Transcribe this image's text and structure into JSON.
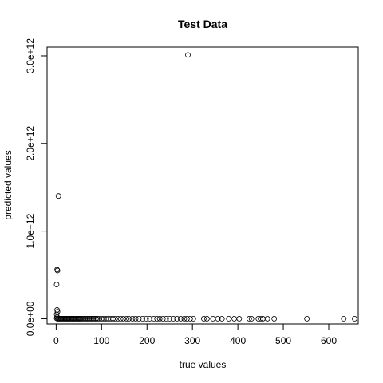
{
  "chart_data": {
    "type": "scatter",
    "title": "Test Data",
    "xlabel": "true values",
    "ylabel": "predicted values",
    "xlim": [
      -20,
      665
    ],
    "ylim": [
      -60000000000,
      3100000000000
    ],
    "xticks": [
      0,
      100,
      200,
      300,
      400,
      500,
      600
    ],
    "xtick_labels": [
      "0",
      "100",
      "200",
      "300",
      "400",
      "500",
      "600"
    ],
    "yticks": [
      0,
      1000000000000,
      2000000000000,
      3000000000000
    ],
    "ytick_labels": [
      "0.0e+00",
      "1.0e+12",
      "2.0e+12",
      "3.0e+12"
    ],
    "grid": false,
    "legend": "none",
    "points": [
      [
        290,
        3010000000000
      ],
      [
        5,
        1400000000000
      ],
      [
        2,
        560000000000
      ],
      [
        3,
        550000000000
      ],
      [
        1,
        390000000000
      ],
      [
        2,
        100000000000
      ],
      [
        3,
        80000000000
      ],
      [
        1,
        50000000000
      ],
      [
        2,
        20000000000
      ],
      [
        1,
        5000000000
      ],
      [
        3,
        0
      ],
      [
        5,
        0
      ],
      [
        7,
        0
      ],
      [
        9,
        0
      ],
      [
        11,
        0
      ],
      [
        13,
        0
      ],
      [
        15,
        0
      ],
      [
        17,
        0
      ],
      [
        19,
        0
      ],
      [
        21,
        0
      ],
      [
        23,
        0
      ],
      [
        25,
        0
      ],
      [
        27,
        0
      ],
      [
        29,
        0
      ],
      [
        31,
        0
      ],
      [
        33,
        0
      ],
      [
        35,
        0
      ],
      [
        37,
        0
      ],
      [
        39,
        0
      ],
      [
        41,
        0
      ],
      [
        43,
        0
      ],
      [
        45,
        0
      ],
      [
        47,
        0
      ],
      [
        49,
        0
      ],
      [
        51,
        0
      ],
      [
        53,
        0
      ],
      [
        55,
        0
      ],
      [
        58,
        0
      ],
      [
        61,
        0
      ],
      [
        64,
        0
      ],
      [
        67,
        0
      ],
      [
        70,
        0
      ],
      [
        73,
        0
      ],
      [
        76,
        0
      ],
      [
        79,
        0
      ],
      [
        82,
        0
      ],
      [
        85,
        0
      ],
      [
        88,
        0
      ],
      [
        91,
        0
      ],
      [
        95,
        0
      ],
      [
        100,
        0
      ],
      [
        105,
        0
      ],
      [
        110,
        0
      ],
      [
        115,
        0
      ],
      [
        120,
        0
      ],
      [
        125,
        0
      ],
      [
        130,
        0
      ],
      [
        136,
        0
      ],
      [
        142,
        0
      ],
      [
        148,
        0
      ],
      [
        155,
        0
      ],
      [
        160,
        0
      ],
      [
        168,
        0
      ],
      [
        175,
        0
      ],
      [
        182,
        0
      ],
      [
        190,
        0
      ],
      [
        198,
        0
      ],
      [
        206,
        0
      ],
      [
        215,
        0
      ],
      [
        222,
        0
      ],
      [
        228,
        0
      ],
      [
        235,
        0
      ],
      [
        242,
        0
      ],
      [
        250,
        0
      ],
      [
        258,
        0
      ],
      [
        266,
        0
      ],
      [
        274,
        0
      ],
      [
        282,
        0
      ],
      [
        288,
        0
      ],
      [
        295,
        0
      ],
      [
        302,
        0
      ],
      [
        325,
        0
      ],
      [
        332,
        0
      ],
      [
        345,
        0
      ],
      [
        356,
        0
      ],
      [
        365,
        0
      ],
      [
        380,
        0
      ],
      [
        392,
        0
      ],
      [
        403,
        0
      ],
      [
        425,
        0
      ],
      [
        430,
        0
      ],
      [
        445,
        0
      ],
      [
        450,
        0
      ],
      [
        455,
        0
      ],
      [
        465,
        0
      ],
      [
        480,
        0
      ],
      [
        552,
        0
      ],
      [
        633,
        0
      ],
      [
        657,
        0
      ]
    ]
  }
}
